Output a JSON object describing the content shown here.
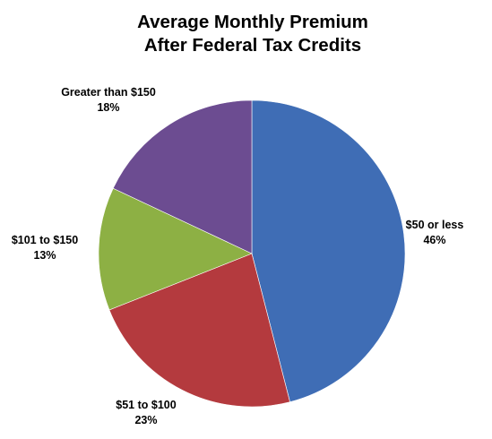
{
  "chart_data": {
    "type": "pie",
    "title": [
      "Average Monthly Premium",
      "After Federal Tax Credits"
    ],
    "start_angle_deg": 0,
    "direction": "clockwise",
    "slices": [
      {
        "category": "$50 or less",
        "percent_label": "46%",
        "value": 46,
        "color": "#3F6DB5"
      },
      {
        "category": "$51 to $100",
        "percent_label": "23%",
        "value": 23,
        "color": "#B43A3E"
      },
      {
        "category": "$101 to $150",
        "percent_label": "13%",
        "value": 13,
        "color": "#8DB044"
      },
      {
        "category": "Greater than $150",
        "percent_label": "18%",
        "value": 18,
        "color": "#6C4C91"
      }
    ]
  }
}
